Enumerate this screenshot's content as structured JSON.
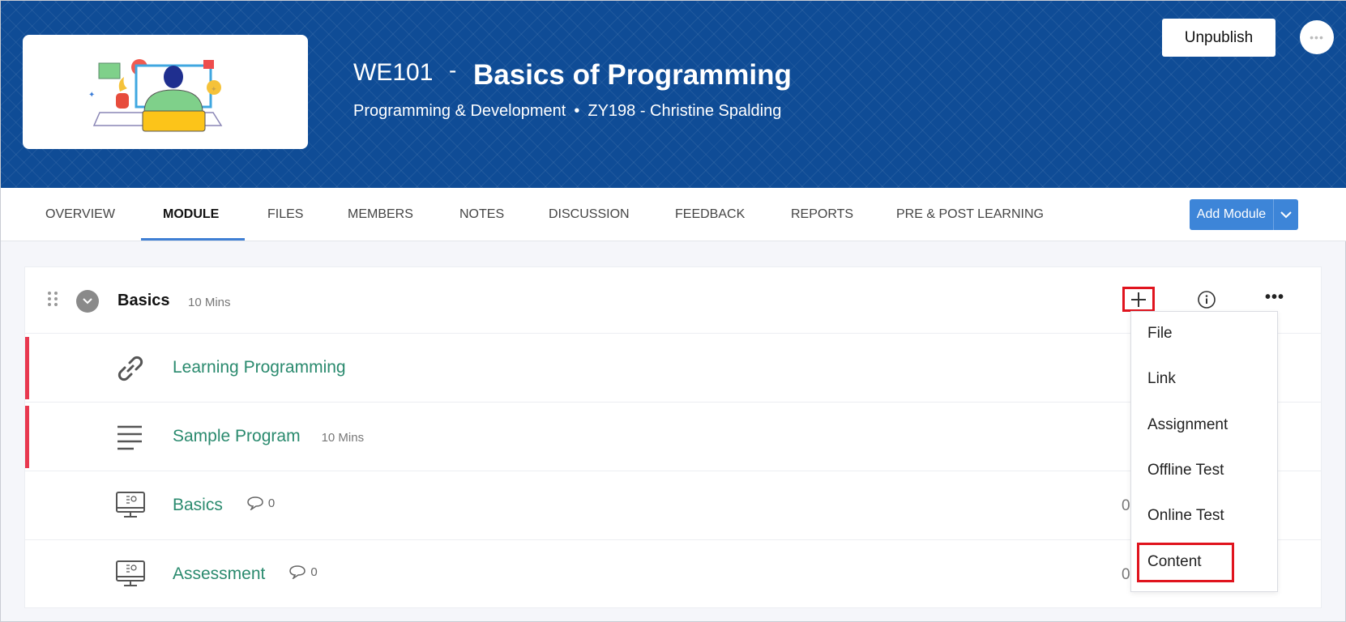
{
  "header": {
    "course_code": "WE101",
    "separator": "-",
    "course_name": "Basics of Programming",
    "category": "Programming & Development",
    "bullet": "•",
    "instructor": "ZY198 - Christine Spalding",
    "unpublish_label": "Unpublish",
    "more_label": "•••",
    "brand_color": "#0f4c96"
  },
  "tabs": [
    {
      "label": "OVERVIEW"
    },
    {
      "label": "MODULE",
      "active": true
    },
    {
      "label": "FILES"
    },
    {
      "label": "MEMBERS"
    },
    {
      "label": "NOTES"
    },
    {
      "label": "DISCUSSION"
    },
    {
      "label": "FEEDBACK"
    },
    {
      "label": "REPORTS"
    },
    {
      "label": "PRE & POST LEARNING"
    }
  ],
  "add_module": {
    "label": "Add Module",
    "accent": "#3d85d8"
  },
  "module": {
    "title": "Basics",
    "duration": "10 Mins",
    "more_label": "•••",
    "items": [
      {
        "icon": "link-icon",
        "title": "Learning Programming",
        "meta": "",
        "comments": null,
        "count": ""
      },
      {
        "icon": "text-lines-icon",
        "title": "Sample Program",
        "meta": "10 Mins",
        "comments": null,
        "count": ""
      },
      {
        "icon": "monitor-icon",
        "title": "Basics",
        "meta": "",
        "comments": "0",
        "count": "0"
      },
      {
        "icon": "monitor-icon",
        "title": "Assessment",
        "meta": "",
        "comments": "0",
        "count": "0"
      }
    ]
  },
  "add_menu": {
    "items": [
      "File",
      "Link",
      "Assignment",
      "Offline Test",
      "Online Test",
      "Content"
    ],
    "highlighted": "Content"
  }
}
